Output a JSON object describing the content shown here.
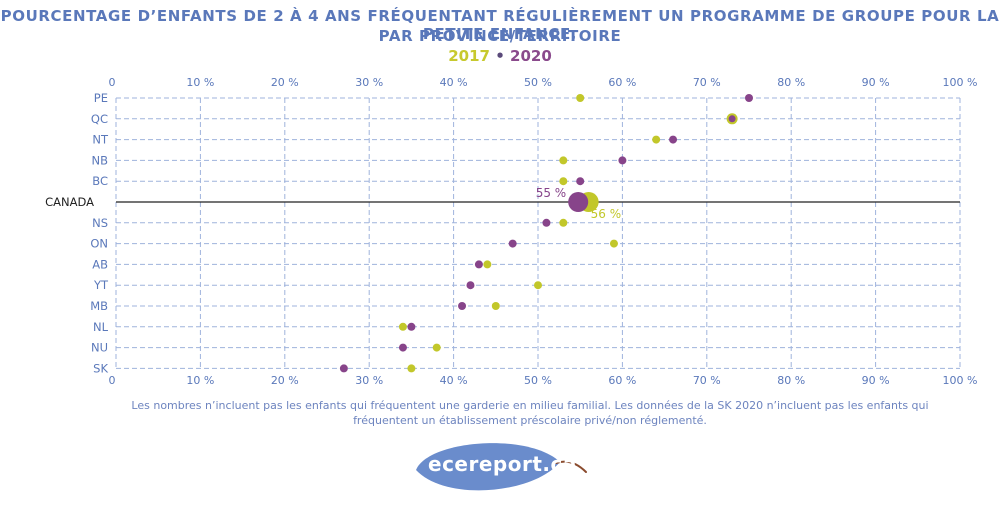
{
  "title_line1": "POURCENTAGE D’ENFANTS DE 2 À 4 ANS FRÉQUENTANT RÉGULIÈREMENT UN PROGRAMME DE GROUPE POUR LA PETITE ENFANCE,",
  "title_line2": "PAR PROVINCE/TERRITOIRE",
  "legend": {
    "label_2017": "2017",
    "separator": "•",
    "label_2020": "2020"
  },
  "colors": {
    "y2017": "#c2c72a",
    "y2020": "#87448a",
    "axis": "#5a78ba",
    "grid": "#9fb3dc",
    "canada_line": "#222222"
  },
  "footnote": "Les nombres n’incluent pas les enfants qui fréquentent une garderie en milieu familial. Les données de la SK 2020 n’incluent pas les enfants qui fréquentent un établissement préscolaire privé/non réglementé.",
  "logo_text": "ecereport.ca",
  "chart_data": {
    "type": "scatter",
    "title": "POURCENTAGE D’ENFANTS DE 2 À 4 ANS FRÉQUENTANT RÉGULIÈREMENT UN PROGRAMME DE GROUPE POUR LA PETITE ENFANCE, PAR PROVINCE/TERRITOIRE",
    "xlim": [
      0,
      100
    ],
    "xticks": [
      0,
      10,
      20,
      30,
      40,
      50,
      60,
      70,
      80,
      90,
      100
    ],
    "xtick_labels": [
      "0",
      "10 %",
      "20 %",
      "30 %",
      "40 %",
      "50 %",
      "60 %",
      "70 %",
      "80 %",
      "90 %",
      "100 %"
    ],
    "categories": [
      "PE",
      "QC",
      "NT",
      "NB",
      "BC",
      "CANADA",
      "NS",
      "ON",
      "AB",
      "YT",
      "MB",
      "NL",
      "NU",
      "SK"
    ],
    "series": [
      {
        "name": "2017",
        "values": [
          55,
          73,
          64,
          53,
          53,
          56,
          53,
          59,
          44,
          50,
          45,
          34,
          38,
          35
        ]
      },
      {
        "name": "2020",
        "values": [
          75,
          73,
          66,
          60,
          55,
          55,
          51,
          47,
          43,
          42,
          41,
          35,
          34,
          27
        ]
      }
    ],
    "annotations": {
      "canada_2020_label": "55 %",
      "canada_2017_label": "56 %"
    },
    "grid": true
  }
}
